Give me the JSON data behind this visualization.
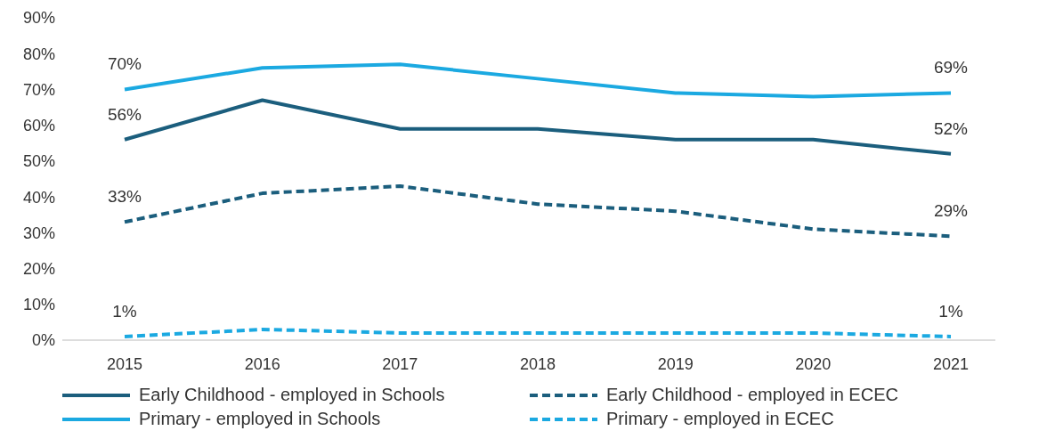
{
  "chart_data": {
    "type": "line",
    "categories": [
      "2015",
      "2016",
      "2017",
      "2018",
      "2019",
      "2020",
      "2021"
    ],
    "series": [
      {
        "name": "Early Childhood - employed in Schools",
        "color": "#1b5e7d",
        "line_style": "solid",
        "values": [
          56,
          67,
          59,
          59,
          56,
          56,
          52
        ],
        "value_labels": [
          "56%",
          null,
          null,
          null,
          null,
          null,
          "52%"
        ]
      },
      {
        "name": "Early Childhood - employed in ECEC",
        "color": "#1b5e7d",
        "line_style": "dashed",
        "values": [
          33,
          41,
          43,
          38,
          36,
          31,
          29
        ],
        "value_labels": [
          "33%",
          null,
          null,
          null,
          null,
          null,
          "29%"
        ]
      },
      {
        "name": "Primary - employed in Schools",
        "color": "#1ba9e1",
        "line_style": "solid",
        "values": [
          70,
          76,
          77,
          73,
          69,
          68,
          69
        ],
        "value_labels": [
          "70%",
          null,
          null,
          null,
          null,
          null,
          "69%"
        ]
      },
      {
        "name": "Primary - employed in ECEC",
        "color": "#1ba9e1",
        "line_style": "dashed",
        "values": [
          1,
          3,
          2,
          2,
          2,
          2,
          1
        ],
        "value_labels": [
          "1%",
          null,
          null,
          null,
          null,
          null,
          "1%"
        ]
      }
    ],
    "ylim": [
      0,
      90
    ],
    "yticks": [
      {
        "value": 0,
        "label": "0%"
      },
      {
        "value": 10,
        "label": "10%"
      },
      {
        "value": 20,
        "label": "20%"
      },
      {
        "value": 30,
        "label": "30%"
      },
      {
        "value": 40,
        "label": "40%"
      },
      {
        "value": 50,
        "label": "50%"
      },
      {
        "value": 60,
        "label": "60%"
      },
      {
        "value": 70,
        "label": "70%"
      },
      {
        "value": 80,
        "label": "80%"
      },
      {
        "value": 90,
        "label": "90%"
      }
    ],
    "grid": false,
    "legend": "bottom",
    "marker": "none"
  }
}
